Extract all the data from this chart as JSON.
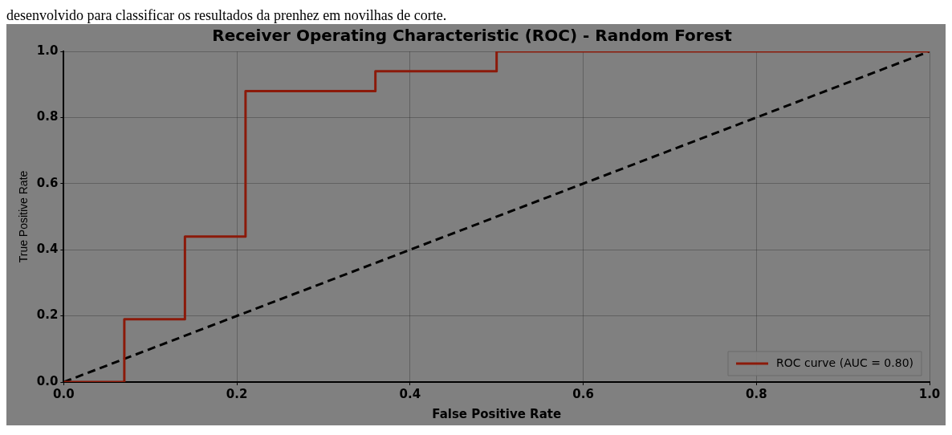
{
  "chart_data": {
    "type": "line",
    "title": "Receiver Operating Characteristic (ROC) - Random Forest",
    "xlabel": "False Positive Rate",
    "ylabel": "True Positive Rate",
    "annotations": [
      "desenvolvido para classificar os resultados da prenhez em novilhas de corte."
    ],
    "series": [
      {
        "name": "ROC curve (AUC = 0.80)",
        "type": "step",
        "color": "#8b1a0a",
        "x": [
          0,
          0.07,
          0.14,
          0.21,
          0.36,
          0.5,
          1
        ],
        "values": [
          0,
          0.19,
          0.44,
          0.88,
          0.94,
          1,
          1
        ],
        "line_style": "solid"
      },
      {
        "type": "line",
        "color": "#000000",
        "x": [
          0,
          1
        ],
        "values": [
          0,
          1
        ],
        "line_style": "dashed"
      }
    ],
    "xlim": [
      0,
      1
    ],
    "ylim": [
      0,
      1
    ],
    "xticks": [
      {
        "value": 0,
        "label": "0.0"
      },
      0.2,
      0.4,
      0.6,
      0.8,
      {
        "value": 1,
        "label": "1.0"
      }
    ],
    "yticks": [
      {
        "value": 0,
        "label": "0.0"
      },
      0.2,
      0.4,
      0.6,
      0.8,
      {
        "value": 1,
        "label": "1.0"
      }
    ],
    "grid": true,
    "legend": "bottom right",
    "marker": "none"
  }
}
